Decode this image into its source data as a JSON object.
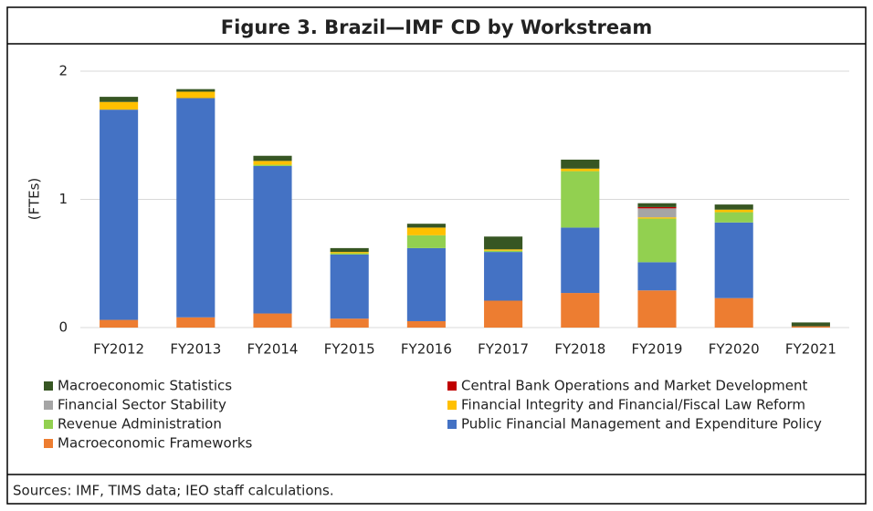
{
  "chart_data": {
    "type": "stacked_bar",
    "title": "Figure 3. Brazil—IMF CD by Workstream",
    "y_label": "(FTEs)",
    "source": "Sources: IMF, TIMS data; IEO staff calculations.",
    "categories": [
      "FY2012",
      "FY2013",
      "FY2014",
      "FY2015",
      "FY2016",
      "FY2017",
      "FY2018",
      "FY2019",
      "FY2020",
      "FY2021"
    ],
    "ylim": [
      0,
      2
    ],
    "yticks": [
      0,
      1,
      2
    ],
    "grid": true,
    "series": [
      {
        "name": "Macroeconomic Frameworks",
        "color": "#ED7D31",
        "values": [
          0.06,
          0.08,
          0.11,
          0.07,
          0.05,
          0.21,
          0.27,
          0.29,
          0.23,
          0.01
        ]
      },
      {
        "name": "Public Financial Management and Expenditure Policy",
        "color": "#4472C4",
        "values": [
          1.64,
          1.71,
          1.15,
          0.5,
          0.57,
          0.38,
          0.51,
          0.22,
          0.59,
          0
        ]
      },
      {
        "name": "Revenue Administration",
        "color": "#92D050",
        "values": [
          0,
          0,
          0.01,
          0.01,
          0.1,
          0.01,
          0.44,
          0.34,
          0.08,
          0
        ]
      },
      {
        "name": "Financial Integrity and Financial/Fiscal Law Reform",
        "color": "#FFC000",
        "values": [
          0.06,
          0.05,
          0.03,
          0.01,
          0.06,
          0.01,
          0.02,
          0.01,
          0.02,
          0
        ]
      },
      {
        "name": "Financial Sector Stability",
        "color": "#A5A5A5",
        "values": [
          0,
          0,
          0,
          0,
          0,
          0,
          0,
          0.07,
          0,
          0
        ]
      },
      {
        "name": "Central Bank Operations and Market Development",
        "color": "#C00000",
        "values": [
          0,
          0,
          0,
          0,
          0,
          0,
          0,
          0.01,
          0,
          0
        ]
      },
      {
        "name": "Macroeconomic Statistics",
        "color": "#375623",
        "values": [
          0.04,
          0.02,
          0.04,
          0.03,
          0.03,
          0.1,
          0.07,
          0.03,
          0.04,
          0.03
        ]
      }
    ]
  }
}
